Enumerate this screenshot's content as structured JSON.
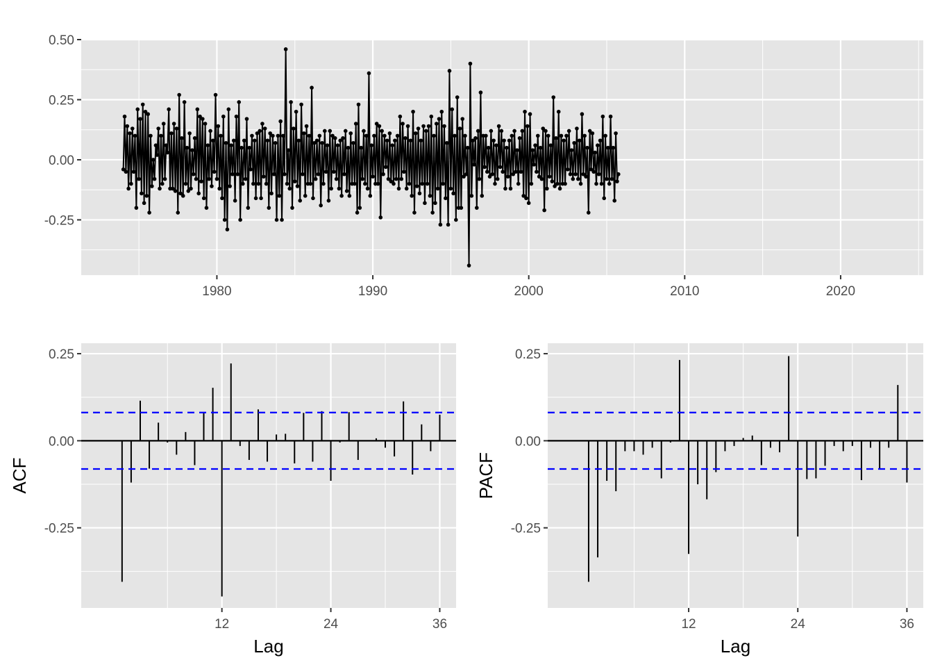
{
  "chart_data": [
    {
      "type": "line",
      "title": "",
      "xlabel": "",
      "ylabel": "",
      "x_start": 1974.0,
      "x_step": 0.08333,
      "xlim": [
        1971.3,
        2025.3
      ],
      "ylim": [
        -0.48,
        0.5
      ],
      "x_ticks": [
        1980,
        1990,
        2000,
        2010,
        2020
      ],
      "x_tick_labels": [
        "1980",
        "1990",
        "2000",
        "2010",
        "2020"
      ],
      "y_ticks": [
        0.5,
        0.25,
        0.0,
        -0.25
      ],
      "y_tick_labels": [
        "0.50",
        "0.25",
        "0.00",
        "-0.25"
      ],
      "grid": true,
      "points": true,
      "series": [
        {
          "values": [
            -0.04,
            0.18,
            -0.05,
            0.14,
            -0.12,
            0.11,
            -0.1,
            0.13,
            -0.05,
            0.1,
            -0.2,
            0.21,
            -0.08,
            0.17,
            -0.14,
            0.23,
            -0.18,
            0.2,
            -0.15,
            0.19,
            -0.22,
            0.1,
            -0.11,
            0.0,
            -0.08,
            0.06,
            0.02,
            0.13,
            -0.12,
            0.1,
            -0.1,
            0.15,
            -0.08,
            0.06,
            0.03,
            0.21,
            -0.12,
            0.11,
            -0.12,
            0.15,
            -0.13,
            0.13,
            -0.22,
            0.27,
            -0.14,
            0.09,
            -0.15,
            0.24,
            -0.1,
            0.05,
            -0.13,
            0.11,
            -0.12,
            0.04,
            -0.06,
            0.09,
            -0.08,
            0.21,
            -0.14,
            0.18,
            -0.09,
            0.17,
            -0.16,
            0.15,
            -0.2,
            0.06,
            -0.08,
            0.12,
            -0.11,
            0.08,
            -0.05,
            0.27,
            -0.08,
            0.14,
            -0.12,
            0.1,
            -0.16,
            0.18,
            -0.25,
            0.07,
            -0.29,
            0.21,
            -0.11,
            0.06,
            -0.06,
            0.08,
            -0.17,
            0.18,
            -0.06,
            0.24,
            -0.25,
            0.05,
            -0.1,
            0.08,
            -0.08,
            0.17,
            -0.2,
            0.05,
            -0.04,
            0.1,
            -0.1,
            0.08,
            -0.16,
            0.11,
            -0.1,
            0.12,
            -0.16,
            0.15,
            -0.07,
            0.13,
            -0.1,
            0.08,
            -0.2,
            0.11,
            -0.14,
            0.1,
            -0.06,
            0.07,
            -0.25,
            0.1,
            -0.15,
            0.16,
            -0.25,
            0.1,
            -0.06,
            0.46,
            -0.1,
            0.04,
            -0.12,
            0.24,
            -0.2,
            0.13,
            -0.09,
            0.2,
            -0.11,
            0.08,
            -0.17,
            0.23,
            -0.06,
            0.11,
            -0.15,
            0.14,
            -0.1,
            0.1,
            -0.1,
            0.3,
            -0.16,
            0.07,
            -0.08,
            0.08,
            -0.06,
            0.1,
            -0.19,
            0.07,
            -0.1,
            0.12,
            -0.05,
            0.06,
            -0.17,
            0.12,
            -0.12,
            0.1,
            -0.05,
            0.09,
            -0.08,
            0.06,
            -0.12,
            0.08,
            -0.15,
            0.09,
            -0.06,
            0.12,
            -0.13,
            0.05,
            -0.15,
            0.11,
            -0.1,
            0.07,
            -0.1,
            0.15,
            -0.22,
            0.23,
            -0.2,
            0.05,
            -0.08,
            0.12,
            -0.1,
            0.1,
            -0.12,
            0.36,
            -0.15,
            0.06,
            -0.07,
            0.1,
            -0.1,
            0.15,
            -0.1,
            0.14,
            -0.24,
            0.12,
            -0.06,
            0.1,
            -0.03,
            0.08,
            -0.08,
            0.11,
            -0.09,
            0.06,
            -0.1,
            0.08,
            -0.08,
            0.1,
            -0.12,
            0.18,
            -0.08,
            0.15,
            -0.05,
            0.09,
            -0.12,
            0.14,
            -0.1,
            0.08,
            -0.15,
            0.2,
            -0.22,
            0.11,
            -0.11,
            0.13,
            -0.14,
            0.08,
            -0.1,
            0.14,
            -0.18,
            0.12,
            -0.1,
            0.14,
            -0.15,
            0.18,
            -0.22,
            0.1,
            -0.18,
            0.15,
            -0.12,
            0.17,
            -0.27,
            0.2,
            -0.1,
            0.14,
            -0.16,
            0.07,
            -0.27,
            0.37,
            -0.12,
            0.21,
            -0.14,
            0.1,
            -0.25,
            0.26,
            -0.2,
            0.13,
            -0.2,
            0.17,
            -0.07,
            0.1,
            -0.06,
            0.05,
            -0.44,
            0.4,
            -0.15,
            0.08,
            -0.02,
            0.09,
            -0.2,
            0.12,
            -0.08,
            0.28,
            -0.15,
            0.1,
            -0.03,
            0.1,
            -0.05,
            0.05,
            -0.07,
            0.12,
            -0.06,
            0.08,
            -0.1,
            0.06,
            -0.08,
            0.14,
            -0.03,
            0.12,
            -0.05,
            0.08,
            -0.12,
            0.05,
            -0.07,
            0.08,
            -0.12,
            0.1,
            -0.06,
            0.12,
            -0.05,
            0.04,
            -0.1,
            0.09,
            -0.05,
            0.12,
            -0.15,
            0.2,
            -0.16,
            0.14,
            -0.18,
            0.19,
            -0.1,
            0.04,
            -0.02,
            0.06,
            -0.05,
            0.1,
            -0.07,
            0.05,
            -0.08,
            0.13,
            -0.21,
            0.12,
            -0.12,
            0.1,
            -0.07,
            0.06,
            -0.09,
            0.26,
            -0.11,
            0.09,
            -0.1,
            0.2,
            -0.12,
            0.1,
            -0.1,
            0.08,
            -0.1,
            0.1,
            -0.04,
            0.12,
            -0.06,
            0.04,
            -0.08,
            0.07,
            -0.06,
            0.13,
            -0.08,
            0.08,
            -0.1,
            0.19,
            -0.06,
            0.1,
            -0.07,
            0.05,
            -0.22,
            0.12,
            -0.04,
            0.11,
            -0.05,
            0.03,
            -0.1,
            0.06,
            -0.06,
            0.08,
            -0.1,
            0.18,
            -0.16,
            0.1,
            -0.08,
            0.05,
            -0.1,
            0.18,
            -0.08,
            0.05,
            -0.17,
            0.11,
            -0.09,
            -0.06
          ]
        }
      ]
    },
    {
      "type": "bar",
      "title": "",
      "xlabel": "Lag",
      "ylabel": "ACF",
      "lags": [
        1,
        2,
        3,
        4,
        5,
        6,
        7,
        8,
        9,
        10,
        11,
        12,
        13,
        14,
        15,
        16,
        17,
        18,
        19,
        20,
        21,
        22,
        23,
        24,
        25,
        26,
        27,
        28,
        29,
        30,
        31,
        32,
        33,
        34,
        35,
        36
      ],
      "values": [
        -0.405,
        -0.12,
        0.115,
        -0.08,
        0.052,
        -0.005,
        -0.04,
        0.025,
        -0.07,
        0.08,
        0.152,
        -0.447,
        0.222,
        -0.015,
        -0.055,
        0.09,
        -0.06,
        0.018,
        0.02,
        -0.065,
        0.08,
        -0.06,
        0.085,
        -0.115,
        -0.005,
        0.082,
        -0.055,
        0.0,
        0.007,
        -0.02,
        -0.045,
        0.113,
        -0.097,
        0.047,
        -0.03,
        0.075
      ],
      "ci": 0.081,
      "xlim": [
        -3.5,
        37.8
      ],
      "ylim": [
        -0.48,
        0.28
      ],
      "x_ticks": [
        12,
        24,
        36
      ],
      "x_tick_labels": [
        "12",
        "24",
        "36"
      ],
      "y_ticks": [
        0.25,
        0.0,
        -0.25
      ],
      "y_tick_labels": [
        "0.25",
        "0.00",
        "-0.25"
      ],
      "grid": true
    },
    {
      "type": "bar",
      "title": "",
      "xlabel": "Lag",
      "ylabel": "PACF",
      "lags": [
        1,
        2,
        3,
        4,
        5,
        6,
        7,
        8,
        9,
        10,
        11,
        12,
        13,
        14,
        15,
        16,
        17,
        18,
        19,
        20,
        21,
        22,
        23,
        24,
        25,
        26,
        27,
        28,
        29,
        30,
        31,
        32,
        33,
        34,
        35,
        36
      ],
      "values": [
        -0.405,
        -0.335,
        -0.115,
        -0.145,
        -0.03,
        -0.03,
        -0.04,
        -0.02,
        -0.108,
        -0.005,
        0.232,
        -0.325,
        -0.125,
        -0.168,
        -0.09,
        -0.03,
        -0.015,
        0.008,
        0.015,
        -0.07,
        -0.02,
        -0.033,
        0.243,
        -0.275,
        -0.11,
        -0.108,
        -0.072,
        -0.015,
        -0.03,
        -0.015,
        -0.113,
        -0.02,
        -0.08,
        -0.02,
        0.16,
        -0.12
      ],
      "ci": 0.081,
      "xlim": [
        -3.5,
        37.8
      ],
      "ylim": [
        -0.48,
        0.28
      ],
      "x_ticks": [
        12,
        24,
        36
      ],
      "x_tick_labels": [
        "12",
        "24",
        "36"
      ],
      "y_ticks": [
        0.25,
        0.0,
        -0.25
      ],
      "y_tick_labels": [
        "0.25",
        "0.00",
        "-0.25"
      ],
      "grid": true
    }
  ],
  "colors": {
    "panel": "#e5e5e5",
    "gridline": "#ffffff",
    "series": "#000000",
    "ci_line": "#0000ff",
    "tick_text": "#4d4d4d",
    "axis_text": "#000000"
  }
}
